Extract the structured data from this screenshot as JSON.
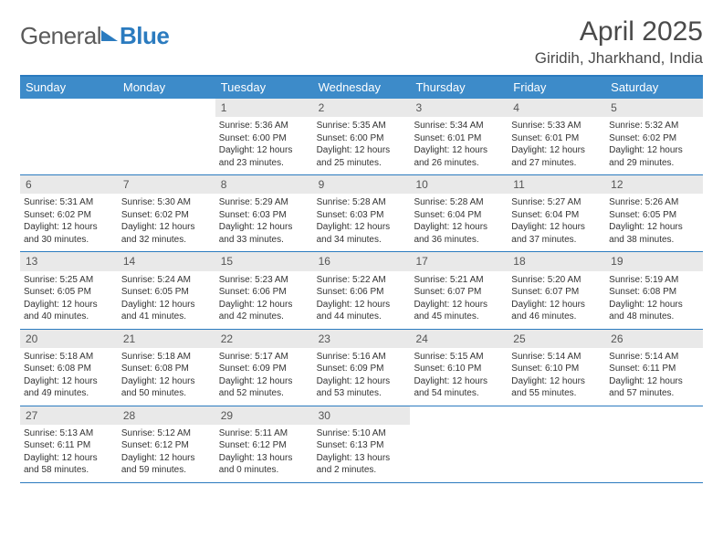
{
  "brand": {
    "text1": "General",
    "text2": "Blue"
  },
  "title": "April 2025",
  "location": "Giridih, Jharkhand, India",
  "colors": {
    "header_bg": "#3d8bc9",
    "border": "#2b7bbf",
    "daynum_bg": "#e9e9e9",
    "text": "#333333"
  },
  "day_names": [
    "Sunday",
    "Monday",
    "Tuesday",
    "Wednesday",
    "Thursday",
    "Friday",
    "Saturday"
  ],
  "weeks": [
    [
      {
        "empty": true
      },
      {
        "empty": true
      },
      {
        "day": "1",
        "sunrise": "5:36 AM",
        "sunset": "6:00 PM",
        "daylight": "12 hours and 23 minutes."
      },
      {
        "day": "2",
        "sunrise": "5:35 AM",
        "sunset": "6:00 PM",
        "daylight": "12 hours and 25 minutes."
      },
      {
        "day": "3",
        "sunrise": "5:34 AM",
        "sunset": "6:01 PM",
        "daylight": "12 hours and 26 minutes."
      },
      {
        "day": "4",
        "sunrise": "5:33 AM",
        "sunset": "6:01 PM",
        "daylight": "12 hours and 27 minutes."
      },
      {
        "day": "5",
        "sunrise": "5:32 AM",
        "sunset": "6:02 PM",
        "daylight": "12 hours and 29 minutes."
      }
    ],
    [
      {
        "day": "6",
        "sunrise": "5:31 AM",
        "sunset": "6:02 PM",
        "daylight": "12 hours and 30 minutes."
      },
      {
        "day": "7",
        "sunrise": "5:30 AM",
        "sunset": "6:02 PM",
        "daylight": "12 hours and 32 minutes."
      },
      {
        "day": "8",
        "sunrise": "5:29 AM",
        "sunset": "6:03 PM",
        "daylight": "12 hours and 33 minutes."
      },
      {
        "day": "9",
        "sunrise": "5:28 AM",
        "sunset": "6:03 PM",
        "daylight": "12 hours and 34 minutes."
      },
      {
        "day": "10",
        "sunrise": "5:28 AM",
        "sunset": "6:04 PM",
        "daylight": "12 hours and 36 minutes."
      },
      {
        "day": "11",
        "sunrise": "5:27 AM",
        "sunset": "6:04 PM",
        "daylight": "12 hours and 37 minutes."
      },
      {
        "day": "12",
        "sunrise": "5:26 AM",
        "sunset": "6:05 PM",
        "daylight": "12 hours and 38 minutes."
      }
    ],
    [
      {
        "day": "13",
        "sunrise": "5:25 AM",
        "sunset": "6:05 PM",
        "daylight": "12 hours and 40 minutes."
      },
      {
        "day": "14",
        "sunrise": "5:24 AM",
        "sunset": "6:05 PM",
        "daylight": "12 hours and 41 minutes."
      },
      {
        "day": "15",
        "sunrise": "5:23 AM",
        "sunset": "6:06 PM",
        "daylight": "12 hours and 42 minutes."
      },
      {
        "day": "16",
        "sunrise": "5:22 AM",
        "sunset": "6:06 PM",
        "daylight": "12 hours and 44 minutes."
      },
      {
        "day": "17",
        "sunrise": "5:21 AM",
        "sunset": "6:07 PM",
        "daylight": "12 hours and 45 minutes."
      },
      {
        "day": "18",
        "sunrise": "5:20 AM",
        "sunset": "6:07 PM",
        "daylight": "12 hours and 46 minutes."
      },
      {
        "day": "19",
        "sunrise": "5:19 AM",
        "sunset": "6:08 PM",
        "daylight": "12 hours and 48 minutes."
      }
    ],
    [
      {
        "day": "20",
        "sunrise": "5:18 AM",
        "sunset": "6:08 PM",
        "daylight": "12 hours and 49 minutes."
      },
      {
        "day": "21",
        "sunrise": "5:18 AM",
        "sunset": "6:08 PM",
        "daylight": "12 hours and 50 minutes."
      },
      {
        "day": "22",
        "sunrise": "5:17 AM",
        "sunset": "6:09 PM",
        "daylight": "12 hours and 52 minutes."
      },
      {
        "day": "23",
        "sunrise": "5:16 AM",
        "sunset": "6:09 PM",
        "daylight": "12 hours and 53 minutes."
      },
      {
        "day": "24",
        "sunrise": "5:15 AM",
        "sunset": "6:10 PM",
        "daylight": "12 hours and 54 minutes."
      },
      {
        "day": "25",
        "sunrise": "5:14 AM",
        "sunset": "6:10 PM",
        "daylight": "12 hours and 55 minutes."
      },
      {
        "day": "26",
        "sunrise": "5:14 AM",
        "sunset": "6:11 PM",
        "daylight": "12 hours and 57 minutes."
      }
    ],
    [
      {
        "day": "27",
        "sunrise": "5:13 AM",
        "sunset": "6:11 PM",
        "daylight": "12 hours and 58 minutes."
      },
      {
        "day": "28",
        "sunrise": "5:12 AM",
        "sunset": "6:12 PM",
        "daylight": "12 hours and 59 minutes."
      },
      {
        "day": "29",
        "sunrise": "5:11 AM",
        "sunset": "6:12 PM",
        "daylight": "13 hours and 0 minutes."
      },
      {
        "day": "30",
        "sunrise": "5:10 AM",
        "sunset": "6:13 PM",
        "daylight": "13 hours and 2 minutes."
      },
      {
        "empty": true
      },
      {
        "empty": true
      },
      {
        "empty": true
      }
    ]
  ],
  "labels": {
    "sunrise_prefix": "Sunrise: ",
    "sunset_prefix": "Sunset: ",
    "daylight_prefix": "Daylight: "
  }
}
